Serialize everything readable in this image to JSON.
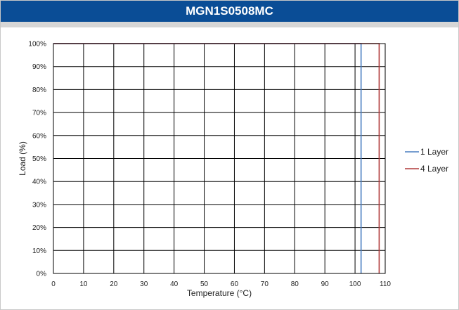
{
  "chart_data": {
    "type": "line",
    "title": "MGN1S0508MC",
    "xlabel": "Temperature (°C)",
    "ylabel": "Load (%)",
    "xlim": [
      0,
      110
    ],
    "ylim": [
      0,
      100
    ],
    "x_ticks": [
      "0",
      "10",
      "20",
      "30",
      "40",
      "50",
      "60",
      "70",
      "80",
      "90",
      "100",
      "110"
    ],
    "y_ticks": [
      "0%",
      "10%",
      "20%",
      "30%",
      "40%",
      "50%",
      "60%",
      "70%",
      "80%",
      "90%",
      "100%"
    ],
    "grid": true,
    "legend_position": "right",
    "series": [
      {
        "name": "1 Layer",
        "color": "#4a7fc1",
        "x": [
          0,
          102,
          102
        ],
        "y": [
          100,
          100,
          0
        ]
      },
      {
        "name": "4 Layer",
        "color": "#b03a3a",
        "x": [
          0,
          108,
          108
        ],
        "y": [
          100,
          100,
          0
        ]
      }
    ]
  }
}
